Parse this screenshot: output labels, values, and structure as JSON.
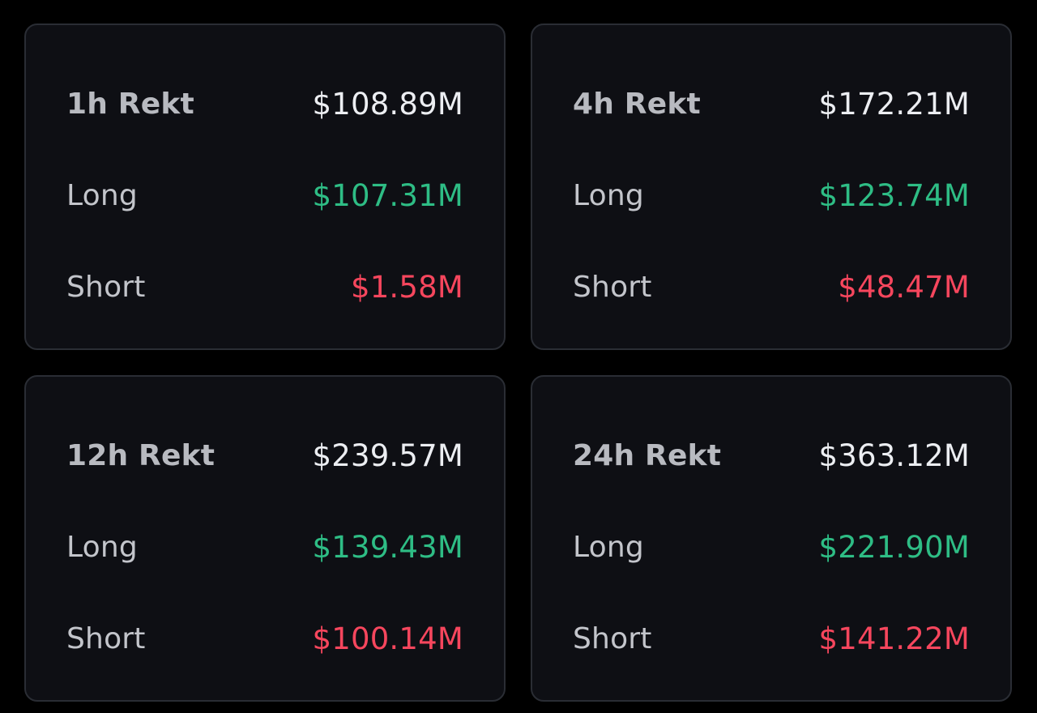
{
  "cards": [
    {
      "title": "1h Rekt",
      "total": "$108.89M",
      "long_label": "Long",
      "long": "$107.31M",
      "short_label": "Short",
      "short": "$1.58M"
    },
    {
      "title": "4h Rekt",
      "total": "$172.21M",
      "long_label": "Long",
      "long": "$123.74M",
      "short_label": "Short",
      "short": "$48.47M"
    },
    {
      "title": "12h Rekt",
      "total": "$239.57M",
      "long_label": "Long",
      "long": "$139.43M",
      "short_label": "Short",
      "short": "$100.14M"
    },
    {
      "title": "24h Rekt",
      "total": "$363.12M",
      "long_label": "Long",
      "long": "$221.90M",
      "short_label": "Short",
      "short": "$141.22M"
    }
  ],
  "colors": {
    "background": "#000000",
    "card": "#0e0f14",
    "border": "#2a2d34",
    "long": "#2ebd85",
    "short": "#f6465d",
    "total": "#eceef2",
    "label": "#c3c5cb"
  }
}
